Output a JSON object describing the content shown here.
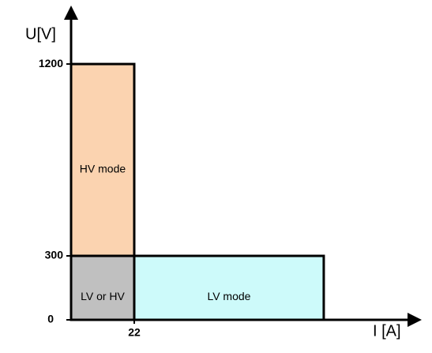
{
  "chart_data": {
    "type": "region",
    "y_label": "U[V]",
    "x_label": "I [A]",
    "xlim": [
      0,
      118
    ],
    "ylim": [
      0,
      1430
    ],
    "xticks": [
      22
    ],
    "yticks": [
      0,
      300,
      1200
    ],
    "regions": [
      {
        "name": "HV mode",
        "color": "#fbd3b0",
        "x": [
          0,
          22
        ],
        "y": [
          300,
          1200
        ]
      },
      {
        "name": "LV or HV",
        "color": "#c0c0c0",
        "x": [
          0,
          22
        ],
        "y": [
          0,
          300
        ]
      },
      {
        "name": "LV mode",
        "color": "#cdfafa",
        "x": [
          22,
          88
        ],
        "y": [
          0,
          300
        ]
      }
    ]
  }
}
